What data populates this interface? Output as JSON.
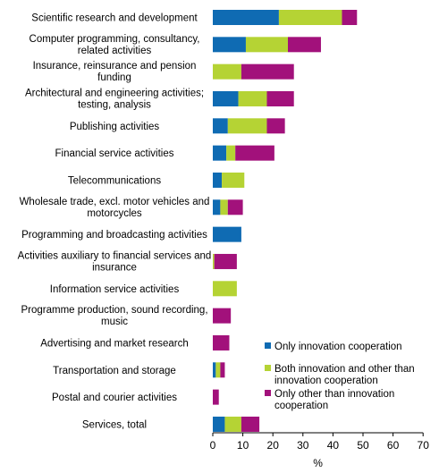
{
  "chart_data": {
    "type": "bar",
    "orientation": "horizontal",
    "stacked": true,
    "title": "",
    "xlabel": "%",
    "ylabel": "",
    "xlim": [
      0,
      70
    ],
    "xticks": [
      0,
      10,
      20,
      30,
      40,
      50,
      60,
      70
    ],
    "grid": false,
    "legend_position": "bottom-right",
    "categories": [
      [
        "Scientific research and development"
      ],
      [
        "Computer programming, consultancy,",
        "related activities"
      ],
      [
        "Insurance, reinsurance and pension",
        "funding"
      ],
      [
        "Architectural and engineering activities;",
        "testing, analysis"
      ],
      [
        "Publishing activities"
      ],
      [
        "Financial service activities"
      ],
      [
        "Telecommunications"
      ],
      [
        "Wholesale trade, excl. motor vehicles and",
        "motorcycles"
      ],
      [
        "Programming and broadcasting activities"
      ],
      [
        "Activities auxiliary to financial services and",
        "insurance"
      ],
      [
        "Information service activities"
      ],
      [
        "Programme production, sound recording,",
        "music"
      ],
      [
        "Advertising and market research"
      ],
      [
        "Transportation and storage"
      ],
      [
        "Postal and courier activities"
      ],
      [
        "Services, total"
      ]
    ],
    "series": [
      {
        "name": [
          "Only innovation cooperation"
        ],
        "color": "#0F6BB3",
        "values": [
          22,
          11,
          0,
          8.5,
          5,
          4.5,
          3,
          2.5,
          9.5,
          0,
          0,
          0,
          0,
          1,
          0,
          4
        ]
      },
      {
        "name": [
          "Both innovation and other than",
          "innovation cooperation"
        ],
        "color": "#B5D334",
        "values": [
          21,
          14,
          9.5,
          9.5,
          13,
          3,
          7.5,
          2.5,
          0,
          0.5,
          8,
          0,
          0,
          1.5,
          0,
          5.5
        ]
      },
      {
        "name": [
          "Only other than innovation",
          "cooperation"
        ],
        "color": "#A2117B",
        "values": [
          5,
          11,
          17.5,
          9,
          6,
          13,
          0,
          5,
          0,
          7.5,
          0,
          6,
          5.5,
          1.5,
          2,
          6
        ]
      }
    ]
  }
}
